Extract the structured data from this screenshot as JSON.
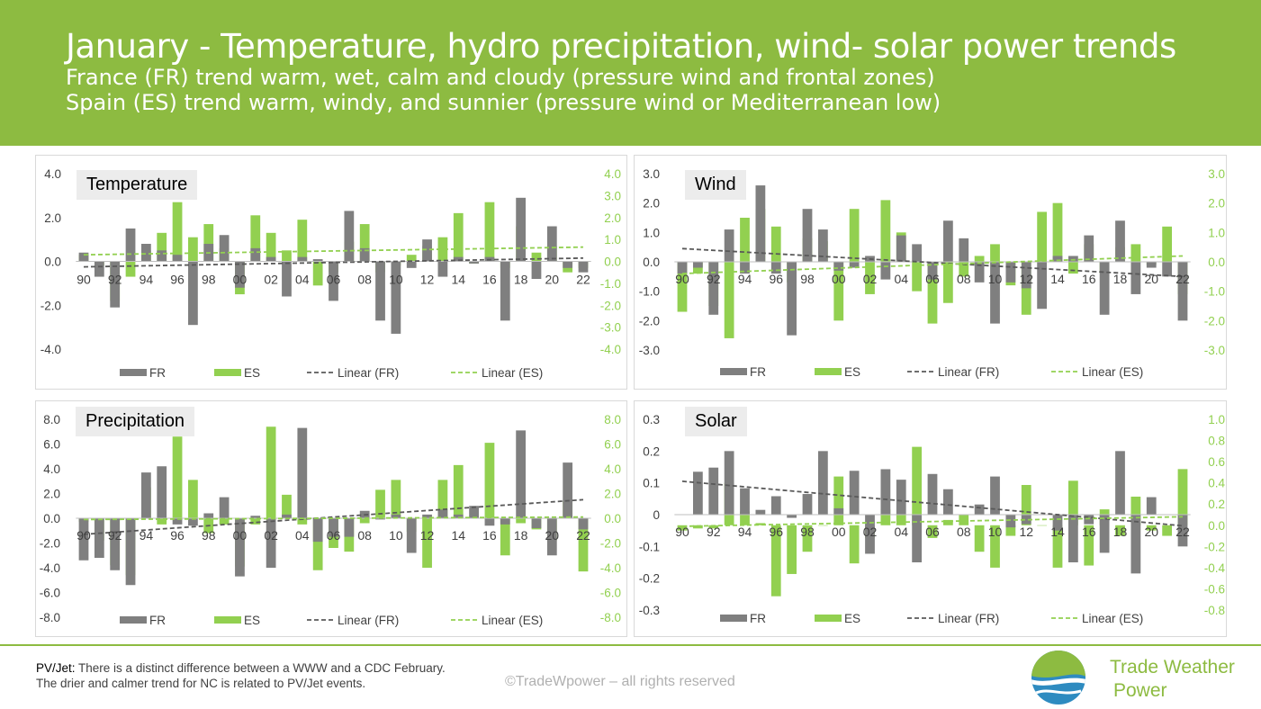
{
  "header": {
    "title": "January - Temperature, hydro precipitation, wind- solar power trends",
    "line2": "France (FR) trend warm, wet, calm and cloudy (pressure wind and frontal zones)",
    "line3": "Spain (ES) trend warm, windy, and sunnier (pressure wind or Mediterranean low)"
  },
  "colors": {
    "header_bg": "#8DBB41",
    "fr": "#7F7F7F",
    "es": "#92D050"
  },
  "footer": {
    "note_label": "PV/Jet:",
    "note_line1": " There is a distinct difference between a WWW and a CDC February.",
    "note_line2": "The drier and calmer trend for NC is related to PV/Jet events.",
    "copyright": "©TradeWpower – all rights reserved",
    "brand_line1": "Trade Weather",
    "brand_line2": "Power"
  },
  "chart_data": [
    {
      "id": "temperature",
      "type": "bar",
      "title": "Temperature",
      "years": [
        1990,
        1991,
        1992,
        1993,
        1994,
        1995,
        1996,
        1997,
        1998,
        1999,
        2000,
        2001,
        2002,
        2003,
        2004,
        2005,
        2006,
        2007,
        2008,
        2009,
        2010,
        2011,
        2012,
        2013,
        2014,
        2015,
        2016,
        2017,
        2018,
        2019,
        2020,
        2021,
        2022
      ],
      "x_tick_labels": [
        "90",
        "92",
        "94",
        "96",
        "98",
        "00",
        "02",
        "04",
        "06",
        "08",
        "10",
        "12",
        "14",
        "16",
        "18",
        "20",
        "22"
      ],
      "series": [
        {
          "name": "FR",
          "values": [
            0.4,
            -0.7,
            -2.1,
            1.5,
            0.8,
            0.5,
            0.3,
            -2.9,
            0.8,
            1.2,
            -1.2,
            0.6,
            0.2,
            -1.6,
            0.2,
            0.1,
            -1.8,
            2.3,
            0.6,
            -2.7,
            -3.3,
            -0.3,
            1.0,
            -0.7,
            0.2,
            -0.1,
            0.2,
            -2.7,
            2.9,
            -0.8,
            1.6,
            -0.3,
            -0.5
          ]
        },
        {
          "name": "ES",
          "values": [
            0.3,
            -0.2,
            -1.8,
            -0.7,
            0.5,
            1.3,
            2.7,
            1.1,
            1.7,
            0.6,
            -1.5,
            2.1,
            1.3,
            0.5,
            1.9,
            -1.1,
            -0.5,
            0.9,
            1.7,
            -0.5,
            -0.2,
            0.3,
            0.7,
            1.1,
            2.2,
            -0.1,
            2.7,
            -0.3,
            1.6,
            0.4,
            0.7,
            -0.5,
            -0.3
          ]
        }
      ],
      "linear_trends": [
        {
          "name": "Linear (FR)",
          "start": -0.25,
          "end": 0.15
        },
        {
          "name": "Linear (ES)",
          "start": 0.3,
          "end": 0.65
        }
      ],
      "y_left": {
        "ticks": [
          "4.0",
          "2.0",
          "0.0",
          "-2.0",
          "-4.0"
        ],
        "ylim": [
          -4,
          4
        ]
      },
      "y_right": {
        "ticks": [
          "4.0",
          "3.0",
          "2.0",
          "1.0",
          "0.0",
          "-1.0",
          "-2.0",
          "-3.0",
          "-4.0"
        ],
        "ylim": [
          -4,
          4
        ]
      },
      "legend": [
        "FR",
        "ES",
        "Linear (FR)",
        "Linear (ES)"
      ]
    },
    {
      "id": "wind",
      "type": "bar",
      "title": "Wind",
      "years": [
        1990,
        1991,
        1992,
        1993,
        1994,
        1995,
        1996,
        1997,
        1998,
        1999,
        2000,
        2001,
        2002,
        2003,
        2004,
        2005,
        2006,
        2007,
        2008,
        2009,
        2010,
        2011,
        2012,
        2013,
        2014,
        2015,
        2016,
        2017,
        2018,
        2019,
        2020,
        2021,
        2022
      ],
      "x_tick_labels": [
        "90",
        "92",
        "94",
        "96",
        "98",
        "00",
        "02",
        "04",
        "06",
        "08",
        "10",
        "12",
        "14",
        "16",
        "18",
        "20",
        "22"
      ],
      "series": [
        {
          "name": "FR",
          "values": [
            -0.4,
            -0.2,
            -1.8,
            1.1,
            -0.4,
            2.6,
            -0.4,
            -2.5,
            1.8,
            1.1,
            -0.3,
            -0.2,
            0.2,
            -0.6,
            0.9,
            0.6,
            -0.6,
            1.4,
            0.8,
            -0.7,
            -2.1,
            -0.7,
            -0.9,
            -1.6,
            0.2,
            0.2,
            0.9,
            -1.8,
            1.4,
            -1.1,
            -0.2,
            -0.5,
            -2.0
          ]
        },
        {
          "name": "ES",
          "values": [
            -1.7,
            -0.4,
            -1.5,
            -2.6,
            1.5,
            1.8,
            1.2,
            -0.7,
            0.8,
            0.7,
            -2.0,
            1.8,
            -1.1,
            2.1,
            1.0,
            -1.0,
            -2.1,
            -1.4,
            -0.5,
            0.2,
            0.6,
            -0.8,
            -1.8,
            1.7,
            2.0,
            -0.4,
            0.6,
            -0.4,
            0.5,
            0.6,
            -0.1,
            1.2,
            -1.1
          ]
        }
      ],
      "linear_trends": [
        {
          "name": "Linear (FR)",
          "start": 0.45,
          "end": -0.5
        },
        {
          "name": "Linear (ES)",
          "start": -0.4,
          "end": 0.2
        }
      ],
      "y_left": {
        "ticks": [
          "3.0",
          "2.0",
          "1.0",
          "0.0",
          "-1.0",
          "-2.0",
          "-3.0"
        ],
        "ylim": [
          -3,
          3
        ]
      },
      "y_right": {
        "ticks": [
          "3.0",
          "2.0",
          "1.0",
          "0.0",
          "-1.0",
          "-2.0",
          "-3.0"
        ],
        "ylim": [
          -3,
          3
        ]
      },
      "legend": [
        "FR",
        "ES",
        "Linear (FR)",
        "Linear (ES)"
      ]
    },
    {
      "id": "precipitation",
      "type": "bar",
      "title": "Precipitation",
      "years": [
        1990,
        1991,
        1992,
        1993,
        1994,
        1995,
        1996,
        1997,
        1998,
        1999,
        2000,
        2001,
        2002,
        2003,
        2004,
        2005,
        2006,
        2007,
        2008,
        2009,
        2010,
        2011,
        2012,
        2013,
        2014,
        2015,
        2016,
        2017,
        2018,
        2019,
        2020,
        2021,
        2022
      ],
      "x_tick_labels": [
        "90",
        "92",
        "94",
        "96",
        "98",
        "00",
        "02",
        "04",
        "06",
        "08",
        "10",
        "12",
        "14",
        "16",
        "18",
        "20",
        "22"
      ],
      "series": [
        {
          "name": "FR",
          "values": [
            -3.4,
            -3.2,
            -4.2,
            -5.4,
            3.7,
            4.2,
            -0.5,
            -0.6,
            0.4,
            1.7,
            -4.7,
            0.2,
            -4.0,
            0.3,
            7.3,
            -1.9,
            -1.5,
            -1.5,
            0.6,
            -0.1,
            0.3,
            -2.8,
            0.3,
            0.7,
            0.3,
            1.0,
            -0.6,
            -0.5,
            7.1,
            -0.8,
            -3.0,
            4.5,
            -0.9
          ]
        },
        {
          "name": "ES",
          "values": [
            -0.3,
            -1.8,
            -3.8,
            -4.6,
            2.5,
            -0.5,
            6.6,
            3.1,
            -1.2,
            -0.5,
            -3.9,
            -0.5,
            7.4,
            1.9,
            -0.5,
            -4.2,
            -2.4,
            -2.7,
            -0.4,
            2.3,
            3.1,
            -1.1,
            -4.0,
            3.1,
            4.3,
            0.2,
            6.1,
            -3.0,
            -0.4,
            -0.9,
            -1.8,
            1.4,
            -4.3
          ]
        }
      ],
      "linear_trends": [
        {
          "name": "Linear (FR)",
          "start": -1.3,
          "end": 1.5
        },
        {
          "name": "Linear (ES)",
          "start": -0.1,
          "end": 0.1
        }
      ],
      "y_left": {
        "ticks": [
          "8.0",
          "6.0",
          "4.0",
          "2.0",
          "0.0",
          "-2.0",
          "-4.0",
          "-6.0",
          "-8.0"
        ],
        "ylim": [
          -8,
          8
        ]
      },
      "y_right": {
        "ticks": [
          "8.0",
          "6.0",
          "4.0",
          "2.0",
          "0.0",
          "-2.0",
          "-4.0",
          "-6.0",
          "-8.0"
        ],
        "ylim": [
          -8,
          8
        ]
      },
      "legend": [
        "FR",
        "ES",
        "Linear (FR)",
        "Linear (ES)"
      ]
    },
    {
      "id": "solar",
      "type": "bar",
      "title": "Solar",
      "years": [
        1990,
        1991,
        1992,
        1993,
        1994,
        1995,
        1996,
        1997,
        1998,
        1999,
        2000,
        2001,
        2002,
        2003,
        2004,
        2005,
        2006,
        2007,
        2008,
        2009,
        2010,
        2011,
        2012,
        2013,
        2014,
        2015,
        2016,
        2017,
        2018,
        2019,
        2020,
        2021,
        2022
      ],
      "x_tick_labels": [
        "90",
        "92",
        "94",
        "96",
        "98",
        "00",
        "02",
        "04",
        "06",
        "08",
        "10",
        "12",
        "14",
        "16",
        "18",
        "20",
        "22"
      ],
      "series": [
        {
          "name": "FR",
          "values": [
            0.0,
            0.135,
            0.148,
            0.2,
            0.083,
            0.015,
            0.058,
            -0.01,
            0.065,
            0.2,
            0.02,
            0.138,
            -0.123,
            0.143,
            0.11,
            -0.15,
            0.128,
            0.08,
            0.0,
            0.032,
            0.12,
            -0.04,
            -0.03,
            0.0,
            -0.05,
            -0.15,
            -0.03,
            -0.12,
            0.2,
            -0.185,
            0.055,
            0.0,
            -0.1
          ]
        },
        {
          "name": "ES",
          "values": [
            -0.05,
            -0.03,
            -0.03,
            0.4,
            0.13,
            0.02,
            -0.67,
            -0.46,
            -0.25,
            0.0,
            0.46,
            -0.36,
            -0.12,
            0.15,
            0.1,
            0.74,
            -0.12,
            0.05,
            0.1,
            -0.25,
            -0.4,
            -0.1,
            0.38,
            0.0,
            -0.4,
            0.42,
            -0.38,
            0.15,
            -0.1,
            0.27,
            -0.05,
            -0.1,
            0.53
          ]
        }
      ],
      "linear_trends": [
        {
          "name": "Linear (FR)",
          "start": 0.105,
          "end": -0.035
        },
        {
          "name": "Linear (ES)",
          "start": -0.01,
          "end": 0.08
        }
      ],
      "y_left": {
        "ticks": [
          "0.3",
          "0.2",
          "0.1",
          "0",
          "-0.1",
          "-0.2",
          "-0.3"
        ],
        "ylim": [
          -0.3,
          0.3
        ]
      },
      "y_right": {
        "ticks": [
          "1.0",
          "0.8",
          "0.6",
          "0.4",
          "0.2",
          "0.0",
          "-0.2",
          "-0.4",
          "-0.6",
          "-0.8"
        ],
        "ylim": [
          -0.8,
          1.0
        ]
      },
      "legend": [
        "FR",
        "ES",
        "Linear (FR)",
        "Linear (ES)"
      ]
    }
  ]
}
